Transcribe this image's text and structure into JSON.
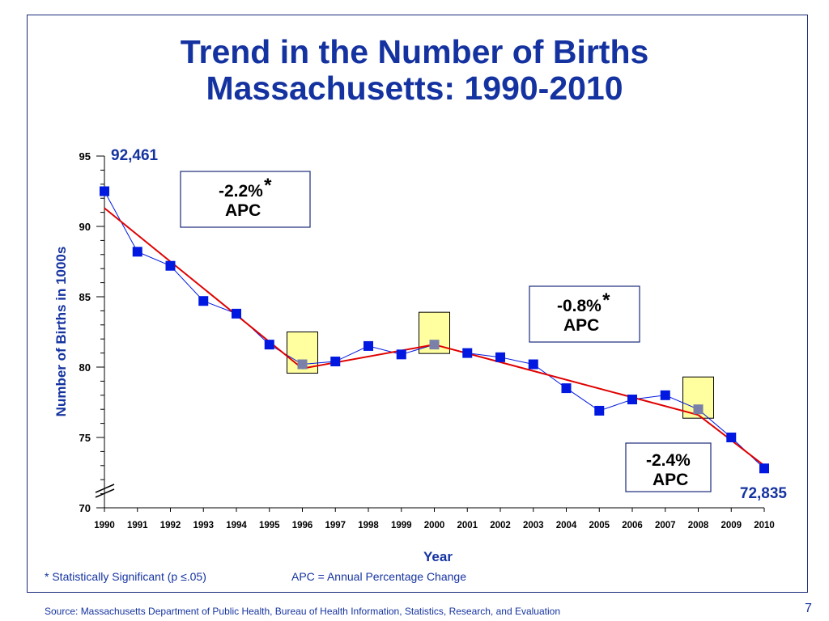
{
  "title_line1": "Trend in the Number of Births",
  "title_line2": "Massachusetts: 1990-2010",
  "chart_data": {
    "type": "line",
    "xlabel": "Year",
    "ylabel": "Number of Births in 1000s",
    "ylim": [
      70,
      95
    ],
    "y_ticks": [
      70,
      75,
      80,
      85,
      90,
      95
    ],
    "x": [
      "1990",
      "1991",
      "1992",
      "1993",
      "1994",
      "1995",
      "1996",
      "1997",
      "1998",
      "1999",
      "2000",
      "2001",
      "2002",
      "2003",
      "2004",
      "2005",
      "2006",
      "2007",
      "2008",
      "2009",
      "2010"
    ],
    "series": [
      {
        "name": "",
        "values": [
          92.5,
          88.2,
          87.2,
          84.7,
          83.8,
          81.6,
          80.2,
          80.4,
          81.5,
          80.9,
          81.6,
          81.0,
          80.7,
          80.2,
          78.5,
          76.9,
          77.7,
          78.0,
          77.0,
          75.0,
          72.8
        ],
        "color": "#0018e0"
      }
    ],
    "trend_segments": [
      {
        "from": "1990",
        "to": "1996",
        "y_start": 91.3,
        "y_end": 79.9
      },
      {
        "from": "1996",
        "to": "2000",
        "y_start": 79.9,
        "y_end": 81.6
      },
      {
        "from": "2000",
        "to": "2008",
        "y_start": 81.6,
        "y_end": 76.6
      },
      {
        "from": "2008",
        "to": "2010",
        "y_start": 76.6,
        "y_end": 73.0
      }
    ],
    "trend_color": "#e00000",
    "joinpoint_years": [
      "1996",
      "2000",
      "2008"
    ],
    "joinpoint_fill": "#ffffa0",
    "value_labels": [
      {
        "year": "1990",
        "text": "92,461"
      },
      {
        "year": "2010",
        "text": "72,835"
      }
    ],
    "apc_boxes": [
      {
        "value": "-2.2%",
        "star": "*",
        "label": "APC"
      },
      {
        "value": "-0.8%",
        "star": "*",
        "label": "APC"
      },
      {
        "value": "-2.4%",
        "star": "",
        "label": "APC"
      }
    ],
    "axis_break": true
  },
  "footnote_significance": "* Statistically Significant  (p ≤.05)",
  "footnote_apc": "APC = Annual Percentage Change",
  "source": "Source:  Massachusetts Department of Public Health, Bureau of Health Information, Statistics, Research, and Evaluation",
  "page_number": "7"
}
